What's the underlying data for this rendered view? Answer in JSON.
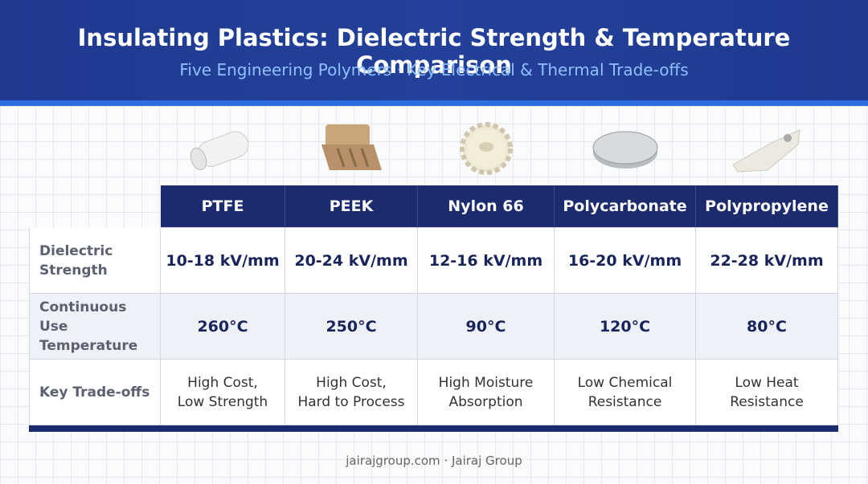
{
  "header": {
    "title": "Insulating Plastics: Dielectric Strength & Temperature Comparison",
    "subtitle": "Five Engineering Polymers · Key Electrical & Thermal Trade-offs"
  },
  "table": {
    "columns": [
      "PTFE",
      "PEEK",
      "Nylon 66",
      "Polycarbonate",
      "Polypropylene"
    ],
    "rows": [
      {
        "label": "Dielectric Strength",
        "cells": [
          "10-18 kV/mm",
          "20-24 kV/mm",
          "12-16 kV/mm",
          "16-20 kV/mm",
          "22-28 kV/mm"
        ]
      },
      {
        "label": "Continuous Use Temperature",
        "cells": [
          "260°C",
          "250°C",
          "90°C",
          "120°C",
          "80°C"
        ]
      },
      {
        "label": "Key Trade-offs",
        "cells": [
          [
            "High Cost,",
            "Low Strength"
          ],
          [
            "High Cost,",
            "Hard to Process"
          ],
          [
            "High Moisture",
            "Absorption"
          ],
          [
            "Low Chemical",
            "Resistance"
          ],
          [
            "Low Heat",
            "Resistance"
          ]
        ]
      }
    ]
  },
  "footer": "jairajgroup.com · Jairaj Group"
}
